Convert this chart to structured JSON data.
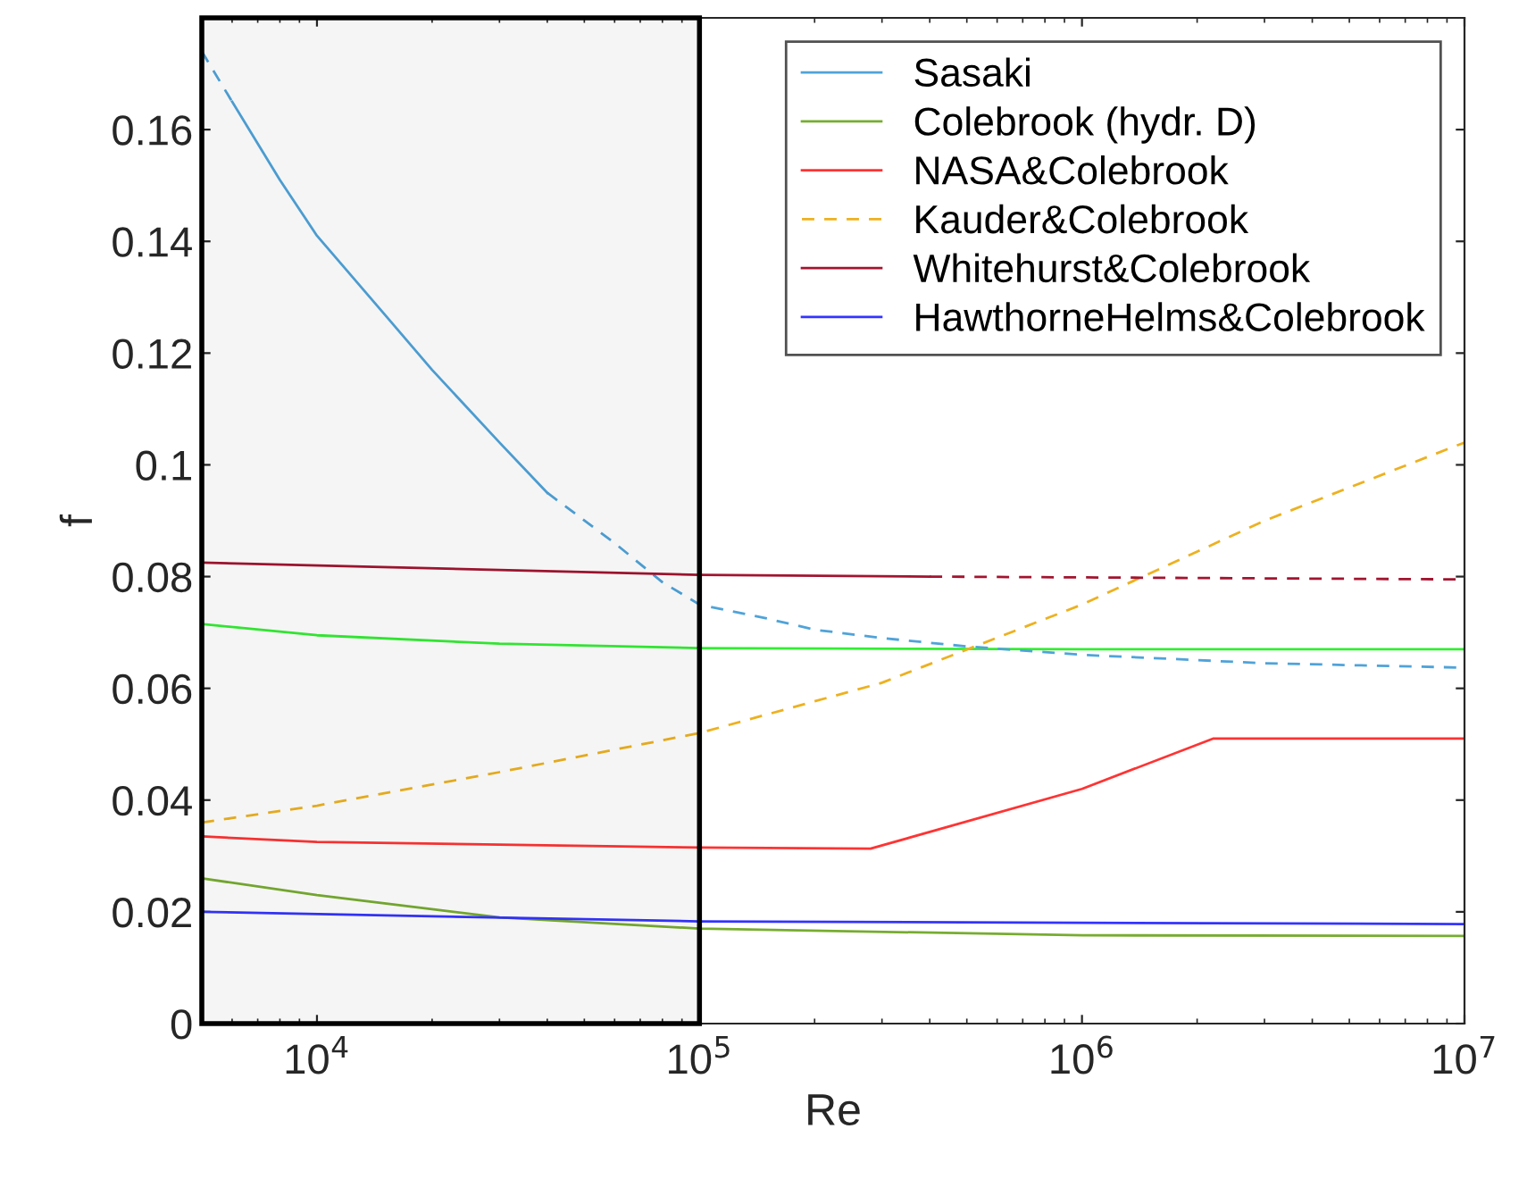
{
  "chart_data": {
    "type": "line",
    "xlabel": "Re",
    "ylabel": "f",
    "log": "x",
    "xlim": [
      5000,
      10000000
    ],
    "xticks": [
      {
        "value": 10000,
        "label": "10$^{4}$"
      },
      {
        "value": 100000,
        "label": "10$^{5}$"
      },
      {
        "value": 1000000,
        "label": "10$^{6}$"
      },
      {
        "value": 10000000,
        "label": "10$^{7}$"
      }
    ],
    "ylim": [
      0,
      0.18
    ],
    "yticks": [
      0,
      0.02,
      0.04,
      0.06,
      0.08,
      0.1,
      0.12,
      0.14,
      0.16
    ],
    "grid": false,
    "legend": "top right",
    "marker": "none",
    "bands": [
      {
        "axis": "x",
        "from": 5000,
        "to": 100000,
        "color": "#000000"
      }
    ],
    "series": [
      {
        "color": "#33ee33",
        "line_style": "solid",
        "x": [
          5000,
          10000,
          30000,
          100000,
          1000000,
          10000000
        ],
        "values": [
          0.0715,
          0.0695,
          0.068,
          0.0672,
          0.067,
          0.067
        ]
      },
      {
        "name": "Sasaki",
        "color": "#4fa3d9",
        "line_style": "solid",
        "x": [
          6000,
          8000,
          10000,
          15000,
          20000,
          30000,
          40000
        ],
        "values": [
          0.165,
          0.151,
          0.141,
          0.127,
          0.117,
          0.104,
          0.095
        ]
      },
      {
        "color": "#4fa3d9",
        "line_style": "dashed",
        "x": [
          5000,
          6000
        ],
        "values": [
          0.174,
          0.165
        ]
      },
      {
        "color": "#4fa3d9",
        "line_style": "dashed",
        "x": [
          40000,
          60000,
          80000,
          100000,
          150000,
          200000,
          300000,
          500000,
          1000000,
          3000000,
          10000000
        ],
        "values": [
          0.095,
          0.086,
          0.079,
          0.075,
          0.0725,
          0.0705,
          0.069,
          0.0675,
          0.066,
          0.0645,
          0.0637
        ]
      },
      {
        "name": "Colebrook (hydr. D)",
        "color": "#77ac30",
        "line_style": "solid",
        "x": [
          5000,
          10000,
          30000,
          100000,
          1000000,
          10000000
        ],
        "values": [
          0.026,
          0.023,
          0.019,
          0.017,
          0.0158,
          0.0157
        ]
      },
      {
        "name": "NASA&Colebrook",
        "color": "#ff3333",
        "line_style": "solid",
        "x": [
          5000,
          10000,
          100000,
          280000,
          1000000,
          2200000,
          10000000
        ],
        "values": [
          0.0335,
          0.0325,
          0.0315,
          0.0313,
          0.042,
          0.051,
          0.051
        ]
      },
      {
        "name": "Kauder&Colebrook",
        "color": "#edb120",
        "line_style": "dashed",
        "x": [
          5000,
          10000,
          30000,
          100000,
          300000,
          1000000,
          3000000,
          10000000
        ],
        "values": [
          0.036,
          0.039,
          0.045,
          0.052,
          0.061,
          0.075,
          0.09,
          0.104
        ]
      },
      {
        "name": "Whitehurst&Colebrook",
        "color": "#a2142f",
        "line_style": "solid",
        "x": [
          5000,
          100000,
          400000
        ],
        "values": [
          0.0825,
          0.0803,
          0.08
        ]
      },
      {
        "color": "#a2142f",
        "line_style": "dashed",
        "x": [
          400000,
          10000000
        ],
        "values": [
          0.08,
          0.0795
        ]
      },
      {
        "name": "HawthorneHelms&Colebrook",
        "color": "#3333ff",
        "line_style": "solid",
        "x": [
          5000,
          100000,
          10000000
        ],
        "values": [
          0.02,
          0.0183,
          0.0178
        ]
      }
    ]
  }
}
